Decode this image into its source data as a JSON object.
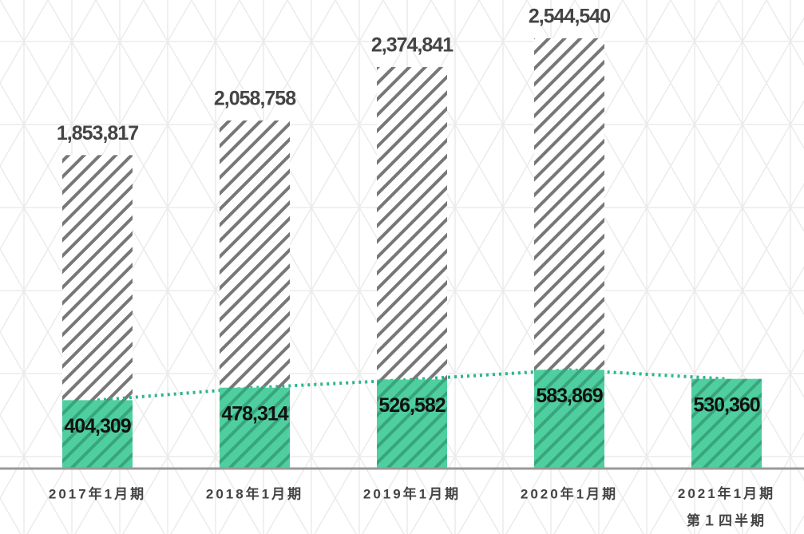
{
  "chart_data": {
    "type": "bar",
    "categories": [
      "2017年1月期",
      "2018年1月期",
      "2019年1月期",
      "2020年1月期",
      "2021年1月期\n第１四半期"
    ],
    "series": [
      {
        "color": "#888888",
        "values": [
          1853817,
          2058758,
          2374841,
          2544540,
          null
        ],
        "value_labels": [
          "1,853,817",
          "2,058,758",
          "2,374,841",
          "2,544,540",
          null
        ]
      },
      {
        "color": "#4fcf9f",
        "values": [
          404309,
          478314,
          526582,
          583869,
          530360
        ],
        "value_labels": [
          "404,309",
          "478,314",
          "526,582",
          "583,869",
          "530,360"
        ]
      }
    ]
  }
}
